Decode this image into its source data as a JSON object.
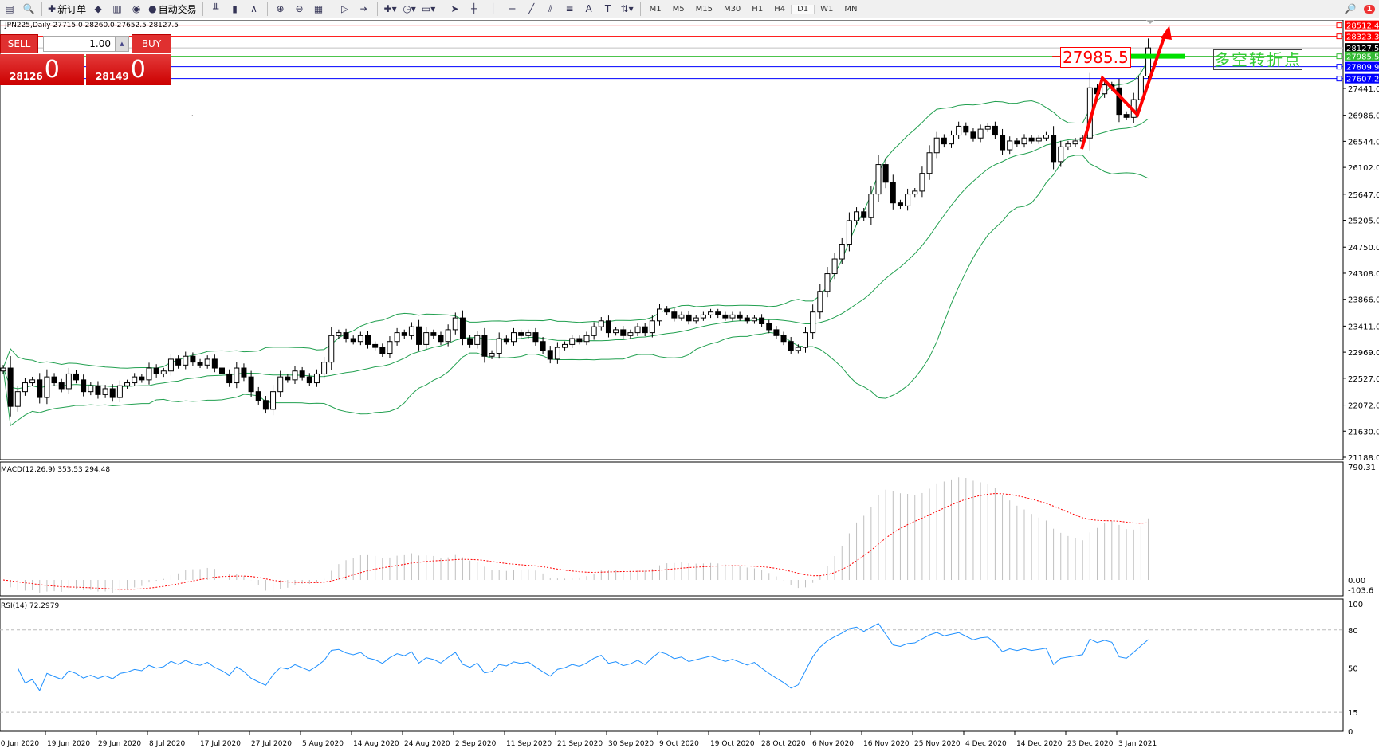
{
  "toolbar": {
    "items": [
      {
        "icon": "new-chart-icon"
      },
      {
        "icon": "zoom-window-icon"
      },
      {
        "icon": "new-order-icon",
        "label": "新订单"
      },
      {
        "icon": "metaeditor-icon"
      },
      {
        "icon": "database-icon"
      },
      {
        "icon": "signal-icon"
      },
      {
        "icon": "auto-trading-icon",
        "label": "自动交易"
      },
      {
        "icon": "bar-chart-icon"
      },
      {
        "icon": "candlestick-icon"
      },
      {
        "icon": "line-chart-icon"
      },
      {
        "icon": "zoom-in-icon"
      },
      {
        "icon": "zoom-out-icon"
      },
      {
        "icon": "tile-windows-icon"
      },
      {
        "icon": "autoscroll-icon"
      },
      {
        "icon": "chart-shift-icon"
      },
      {
        "icon": "indicators-icon"
      },
      {
        "icon": "periods-icon"
      },
      {
        "icon": "templates-icon"
      },
      {
        "icon": "cursor-icon"
      },
      {
        "icon": "crosshair-icon"
      },
      {
        "icon": "vertical-line-icon"
      },
      {
        "icon": "horizontal-line-icon"
      },
      {
        "icon": "trendline-icon"
      },
      {
        "icon": "equidistant-channel-icon"
      },
      {
        "icon": "fibonacci-icon"
      },
      {
        "icon": "text-icon"
      },
      {
        "icon": "text-label-icon"
      },
      {
        "icon": "arrows-icon"
      }
    ],
    "timeframes": [
      "M1",
      "M5",
      "M15",
      "M30",
      "H1",
      "H4",
      "D1",
      "W1",
      "MN"
    ],
    "active_timeframe": "D1",
    "notification_count": "1"
  },
  "chart": {
    "info": "JPN225,Daily  27715.0 28260.0 27652.5 28127.5",
    "symbol": "JPN225",
    "period": "Daily"
  },
  "trade_panel": {
    "sell_label": "SELL",
    "buy_label": "BUY",
    "lot": "1.00",
    "sell_big": "28126",
    "sell_small": "0",
    "buy_big": "28149",
    "buy_small": "0"
  },
  "annotations": {
    "level_label": "27985.5",
    "note": "多空转折点"
  },
  "colors": {
    "bull_candle": "#ffffff",
    "bear_candle": "#000000",
    "bands": "#22a050",
    "macd_hist": "#c0c0c0",
    "macd_signal": "#ff0000",
    "rsi": "#1e90ff",
    "arrow": "#ff0000",
    "marker": "#00e000"
  },
  "chart_data": [
    {
      "type": "candlestick",
      "title": "JPN225,Daily",
      "ohlc_last": {
        "open": 27715.0,
        "high": 28260.0,
        "low": 27652.5,
        "close": 28127.5
      },
      "y_ticks": [
        "27441.0",
        "26986.0",
        "26544.0",
        "26102.0",
        "25647.0",
        "25205.0",
        "24750.0",
        "24308.0",
        "23866.0",
        "23411.0",
        "22969.0",
        "22527.0",
        "22072.0",
        "21630.0",
        "21188.0"
      ],
      "ylim": [
        21188.0,
        28600.0
      ],
      "x_ticks": [
        "10 Jun 2020",
        "19 Jun 2020",
        "29 Jun 2020",
        "8 Jul 2020",
        "17 Jul 2020",
        "27 Jul 2020",
        "5 Aug 2020",
        "14 Aug 2020",
        "24 Aug 2020",
        "2 Sep 2020",
        "11 Sep 2020",
        "21 Sep 2020",
        "30 Sep 2020",
        "9 Oct 2020",
        "19 Oct 2020",
        "28 Oct 2020",
        "6 Nov 2020",
        "16 Nov 2020",
        "25 Nov 2020",
        "4 Dec 2020",
        "14 Dec 2020",
        "23 Dec 2020",
        "3 Jan 2021"
      ],
      "overlay": "Bollinger Bands(20,2)",
      "price_lines": [
        {
          "value": "28512.4",
          "color": "#ff0000"
        },
        {
          "value": "28323.3",
          "color": "#ff0000"
        },
        {
          "value": "28127.5",
          "color": "#000000"
        },
        {
          "value": "27985.5",
          "color": "#33bb33"
        },
        {
          "value": "27809.9",
          "color": "#0000ff"
        },
        {
          "value": "27607.2",
          "color": "#0000ff"
        }
      ],
      "closes": [
        22700,
        22050,
        22300,
        22450,
        22500,
        22200,
        22550,
        22450,
        22350,
        22600,
        22500,
        22300,
        22400,
        22250,
        22350,
        22200,
        22400,
        22450,
        22550,
        22500,
        22700,
        22600,
        22650,
        22850,
        22750,
        22900,
        22800,
        22750,
        22850,
        22700,
        22600,
        22450,
        22700,
        22550,
        22300,
        22150,
        22000,
        22300,
        22550,
        22500,
        22650,
        22550,
        22450,
        22600,
        22800,
        23250,
        23300,
        23200,
        23150,
        23250,
        23100,
        23050,
        22950,
        23150,
        23300,
        23250,
        23400,
        23100,
        23300,
        23250,
        23150,
        23350,
        23550,
        23200,
        23100,
        23250,
        22900,
        22950,
        23200,
        23150,
        23300,
        23250,
        23300,
        23150,
        23000,
        22850,
        23050,
        23100,
        23200,
        23150,
        23250,
        23400,
        23500,
        23300,
        23350,
        23250,
        23300,
        23400,
        23300,
        23500,
        23700,
        23650,
        23550,
        23600,
        23500,
        23550,
        23600,
        23650,
        23600,
        23550,
        23600,
        23550,
        23500,
        23550,
        23450,
        23350,
        23250,
        23150,
        23000,
        23050,
        23300,
        23650,
        24000,
        24300,
        24550,
        24800,
        25200,
        25350,
        25250,
        25650,
        26150,
        25850,
        25500,
        25450,
        25650,
        25700,
        26000,
        26350,
        26600,
        26500,
        26650,
        26800,
        26700,
        26600,
        26750,
        26800,
        26650,
        26400,
        26550,
        26500,
        26600,
        26550,
        26600,
        26650,
        26200,
        26450,
        26500,
        26550,
        26600,
        27450,
        27350,
        27500,
        27450,
        27000,
        26950,
        27250,
        27650,
        28127.5
      ]
    },
    {
      "type": "bar",
      "title": "MACD(12,26,9) 353.53 294.48",
      "y_ticks": [
        "790.31",
        "0.00",
        "-103.6"
      ],
      "ylim": [
        -103.6,
        790.31
      ],
      "last_macd": 353.53,
      "last_signal": 294.48
    },
    {
      "type": "line",
      "title": "RSI(14) 72.2979",
      "y_ticks": [
        "100",
        "80",
        "50",
        "15",
        "0"
      ],
      "ylim": [
        0,
        100
      ],
      "last": 72.2979
    }
  ]
}
